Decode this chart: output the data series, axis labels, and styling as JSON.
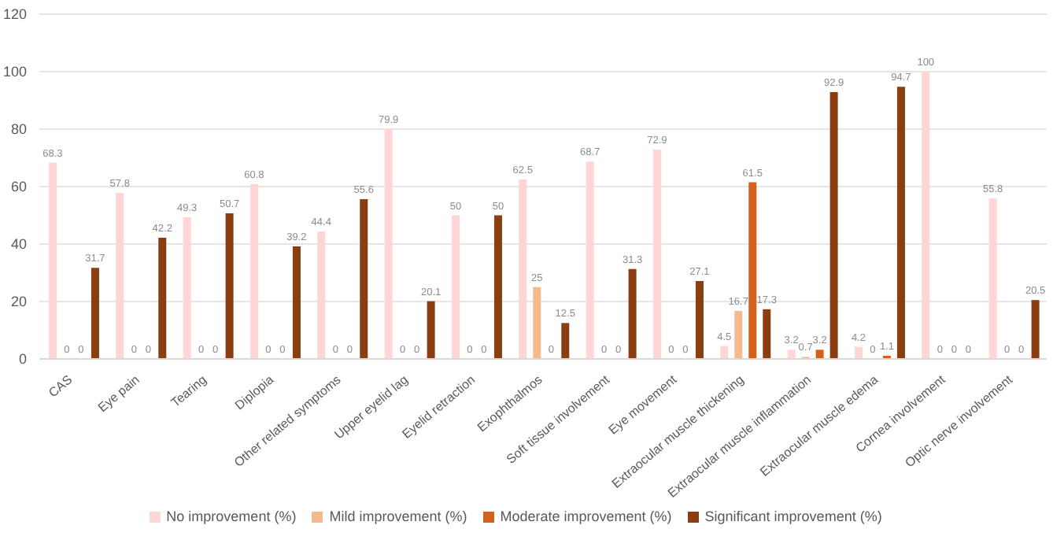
{
  "chart_data": {
    "type": "bar",
    "categories": [
      "CAS",
      "Eye pain",
      "Tearing",
      "Diplopia",
      "Other related symptoms",
      "Upper eyelid lag",
      "Eyelid retraction",
      "Exophthalmos",
      "Soft tissue involvement",
      "Eye movement",
      "Extraocular muscle thickening",
      "Extraocular muscle inflammation",
      "Extraocular muscle edema",
      "Cornea involvement",
      "Optic nerve involvement"
    ],
    "series": [
      {
        "name": "No improvement (%)",
        "color": "#ffd5d5",
        "values": [
          68.3,
          57.8,
          49.3,
          60.8,
          44.4,
          79.9,
          50,
          62.5,
          68.7,
          72.9,
          4.5,
          3.2,
          4.2,
          100,
          55.8
        ]
      },
      {
        "name": "Mild improvement (%)",
        "color": "#f4b98e",
        "values": [
          0,
          0,
          0,
          0,
          0,
          0,
          0,
          25,
          0,
          0,
          16.7,
          0.7,
          0,
          0,
          0
        ]
      },
      {
        "name": "Moderate improvement (%)",
        "color": "#d4601a",
        "values": [
          0,
          0,
          0,
          0,
          0,
          0,
          0,
          0,
          0,
          0,
          61.5,
          3.2,
          1.1,
          0,
          0
        ]
      },
      {
        "name": "Significant improvement (%)",
        "color": "#8b3e10",
        "values": [
          31.7,
          42.2,
          50.7,
          39.2,
          55.6,
          20.1,
          50,
          12.5,
          31.3,
          27.1,
          17.3,
          92.9,
          94.7,
          0,
          20.5
        ]
      }
    ],
    "ylim": [
      0,
      120
    ],
    "yticks": [
      0,
      20,
      40,
      60,
      80,
      100,
      120
    ],
    "grid": "y",
    "legend": "bottom",
    "data_labels": true
  }
}
